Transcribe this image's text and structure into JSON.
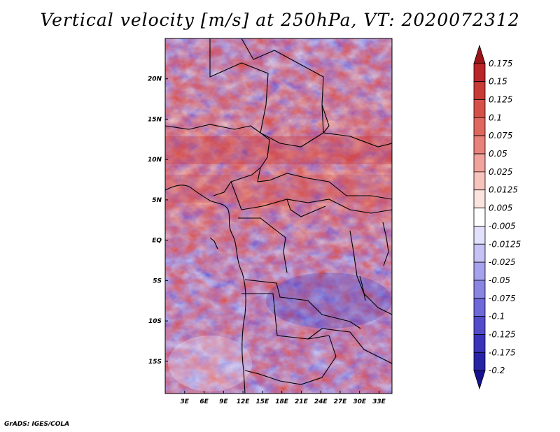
{
  "chart_data": {
    "type": "heatmap",
    "title": "Vertical velocity [m/s] at 250hPa, VT: 2020072312",
    "x_ticks": [
      "3E",
      "6E",
      "9E",
      "12E",
      "15E",
      "18E",
      "21E",
      "24E",
      "27E",
      "30E",
      "33E"
    ],
    "y_ticks": [
      "20N",
      "15N",
      "10N",
      "5N",
      "EQ",
      "5S",
      "10S",
      "15S"
    ],
    "xlim_deg_east": [
      0,
      35
    ],
    "ylim_deg_north": [
      -19,
      25
    ],
    "colorbar": {
      "orientation": "vertical",
      "levels": [
        "0.175",
        "0.15",
        "0.125",
        "0.1",
        "0.075",
        "0.05",
        "0.025",
        "0.0125",
        "0.005",
        "-0.005",
        "-0.0125",
        "-0.025",
        "-0.05",
        "-0.075",
        "-0.1",
        "-0.125",
        "-0.175",
        "-0.2"
      ],
      "colors_top_to_bottom": [
        "#9a1418",
        "#b8262a",
        "#c93a36",
        "#d6504a",
        "#e0675f",
        "#e8827b",
        "#f0a39c",
        "#f6c4bd",
        "#fbe3df",
        "#ffffff",
        "#e3e0fb",
        "#c6c2f4",
        "#a7a2ec",
        "#8a84e3",
        "#6e68d8",
        "#524ccb",
        "#3a34ba",
        "#2723a6",
        "#16128f"
      ]
    },
    "grid": false,
    "legend": "colorbar-right"
  },
  "footer": "GrADS: IGES/COLA"
}
